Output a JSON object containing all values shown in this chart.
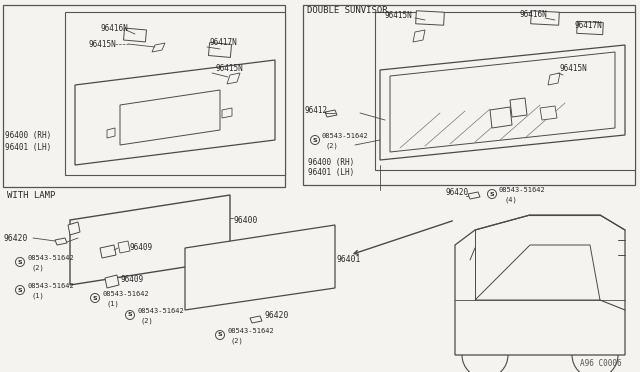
{
  "bg_color": "#f5f3ef",
  "line_color": "#4a4a4a",
  "text_color": "#2a2a2a",
  "border_color": "#666666",
  "fig_ref": "A96 C0006",
  "with_lamp_label": "WITH LAMP",
  "double_sunvisor_label": "DOUBLE SUNVISOR",
  "p96400": "96400",
  "p96401": "96401",
  "p96409": "96409",
  "p96412": "96412",
  "p96415N": "96415N",
  "p96416N": "96416N",
  "p96417N": "96417N",
  "p96420": "96420",
  "screw": "08543-51642",
  "rh": "(RH)",
  "lh": "(LH)",
  "rh_lh_96400": "96400 (RH)",
  "rh_lh_96401": "96401 (LH)"
}
